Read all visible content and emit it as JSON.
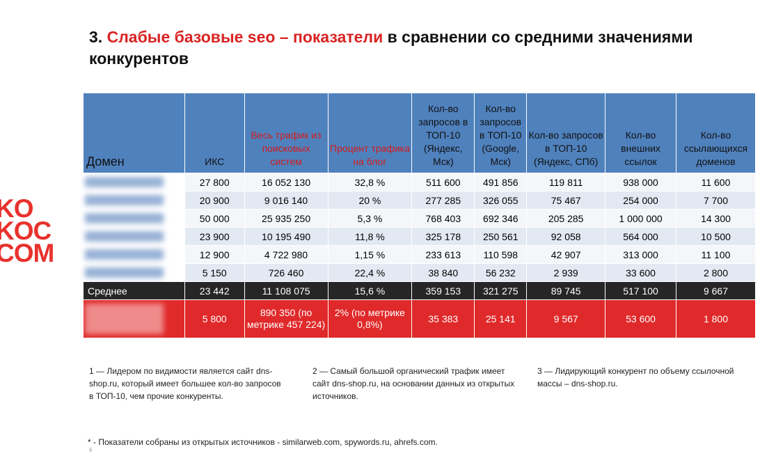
{
  "title": {
    "number": "3.",
    "highlight": "Слабые базовые seo – показатели",
    "rest": "в сравнении со средними значениями конкурентов"
  },
  "logo": [
    "KO",
    "KOC",
    "COM"
  ],
  "table": {
    "headers": [
      "Домен",
      "ИКС",
      "Весь трафик из поисковых систем",
      "Процент трафика на блог",
      "Кол-во запросов в ТОП-10 (Яндекс, Мск)",
      "Кол-во запросов в ТОП-10 (Google, Мск)",
      "Кол-во запросов в ТОП-10 (Яндекс, СПб)",
      "Кол-во внешних ссылок",
      "Кол-во ссылающихся доменов"
    ],
    "rows": [
      [
        "27 800",
        "16 052 130",
        "32,8 %",
        "511 600",
        "491 856",
        "119 811",
        "938 000",
        "11 600"
      ],
      [
        "20 900",
        "9 016 140",
        "20 %",
        "277 285",
        "326 055",
        "75 467",
        "254 000",
        "7 700"
      ],
      [
        "50 000",
        "25 935 250",
        "5,3 %",
        "768 403",
        "692 346",
        "205 285",
        "1 000 000",
        "14 300"
      ],
      [
        "23 900",
        "10 195 490",
        "11,8 %",
        "325 178",
        "250 561",
        "92 058",
        "564 000",
        "10 500"
      ],
      [
        "12 900",
        "4 722 980",
        "1,15 %",
        "233 613",
        "110 598",
        "42 907",
        "313 000",
        "11 100"
      ],
      [
        "5 150",
        "726 460",
        "22,4 %",
        "38 840",
        "56 232",
        "2 939",
        "33 600",
        "2 800"
      ]
    ],
    "average": [
      "Среднее",
      "23 442",
      "11 108 075",
      "15,6 %",
      "359 153",
      "321 275",
      "89 745",
      "517 100",
      "9 667"
    ],
    "own": [
      "5 800",
      "890 350 (по метрике 457 224)",
      "2% (по метрике 0,8%)",
      "35 383",
      "25 141",
      "9 567",
      "53 600",
      "1 800"
    ]
  },
  "footnotes": [
    "1 — Лидером по видимости является сайт dns-shop.ru, который имеет большее кол-во запросов в ТОП-10, чем прочие конкуренты.",
    "2 — Самый большой органический трафик имеет сайт dns-shop.ru, на основании данных из открытых источников.",
    "3 — Лидирующий конкурент по объему ссылочной массы – dns-shop.ru."
  ],
  "note": "* - Показатели собраны из открытых источников - similarweb.com, spywords.ru, ahrefs.com.",
  "page_number": "6"
}
